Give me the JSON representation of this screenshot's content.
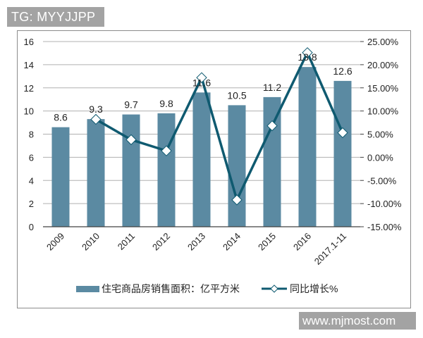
{
  "watermark_top": "TG: MYYJJPP",
  "watermark_bottom": "www.mjmost.com",
  "colors": {
    "bar": "#5b8aa2",
    "line": "#0f5a70",
    "grid": "#b0b0b0",
    "axis": "#404040"
  },
  "legend": {
    "bar_label": "住宅商品房销售面积：亿平方米",
    "line_label": "同比增长%"
  },
  "chart_data": {
    "type": "bar+line",
    "title": "",
    "categories": [
      "2009",
      "2010",
      "2011",
      "2012",
      "2013",
      "2014",
      "2015",
      "2016",
      "2017.1-11"
    ],
    "series": [
      {
        "name": "住宅商品房销售面积：亿平方米",
        "type": "bar",
        "axis": "left",
        "values": [
          8.6,
          9.3,
          9.7,
          9.8,
          11.6,
          10.5,
          11.2,
          13.8,
          12.6
        ],
        "data_labels": [
          "8.6",
          "9.3",
          "9.7",
          "9.8",
          "11.6",
          "10.5",
          "11.2",
          "13.8",
          "12.6"
        ]
      },
      {
        "name": "同比增长%",
        "type": "line",
        "axis": "right",
        "marker": "diamond",
        "values": [
          null,
          8.2,
          3.8,
          1.4,
          17.2,
          -9.2,
          6.8,
          22.6,
          5.3
        ]
      }
    ],
    "left_axis": {
      "min": 0,
      "max": 16,
      "step": 2,
      "ticks": [
        "0",
        "2",
        "4",
        "6",
        "8",
        "10",
        "12",
        "14",
        "16"
      ]
    },
    "right_axis": {
      "min": -15,
      "max": 25,
      "step": 5,
      "ticks": [
        "-15.00%",
        "-10.00%",
        "-5.00%",
        "0.00%",
        "5.00%",
        "10.00%",
        "15.00%",
        "20.00%",
        "25.00%"
      ]
    },
    "xlabel": "",
    "ylabel": "",
    "grid": true,
    "legend_position": "bottom"
  }
}
